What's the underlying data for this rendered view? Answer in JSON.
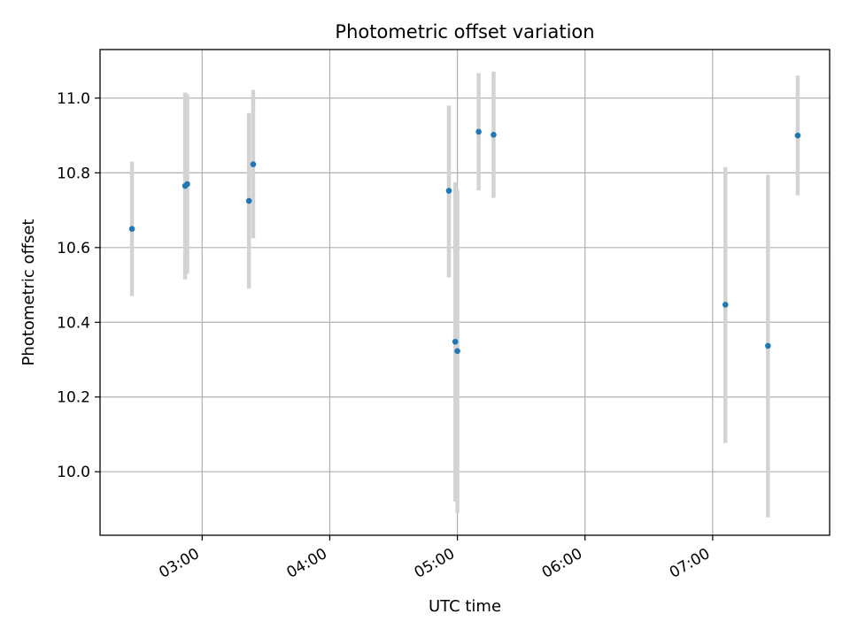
{
  "chart_data": {
    "type": "scatter",
    "title": "Photometric offset variation",
    "xlabel": "UTC time",
    "ylabel": "Photometric offset",
    "x_axis_type": "time",
    "date": "",
    "xlim": [
      "02:12",
      "07:55"
    ],
    "ylim": [
      9.83,
      11.13
    ],
    "x_ticks": [
      "03:00",
      "04:00",
      "05:00",
      "06:00",
      "07:00"
    ],
    "y_ticks": [
      10.0,
      10.2,
      10.4,
      10.6,
      10.8,
      11.0
    ],
    "y_tick_labels": [
      "10.0",
      "10.2",
      "10.4",
      "10.6",
      "10.8",
      "11.0"
    ],
    "grid": true,
    "legend": "none",
    "colors": {
      "marker": "#1f77b4",
      "errorbar": "#d3d3d3",
      "grid": "#b0b0b0",
      "axis": "#000000"
    },
    "series": [
      {
        "points": [
          {
            "x": "02:27",
            "y": 10.65,
            "ylo": 10.47,
            "yhi": 10.83
          },
          {
            "x": "02:52",
            "y": 10.765,
            "ylo": 10.515,
            "yhi": 11.015
          },
          {
            "x": "02:53",
            "y": 10.77,
            "ylo": 10.53,
            "yhi": 11.01
          },
          {
            "x": "03:22",
            "y": 10.725,
            "ylo": 10.49,
            "yhi": 10.96
          },
          {
            "x": "03:24",
            "y": 10.823,
            "ylo": 10.625,
            "yhi": 11.022
          },
          {
            "x": "04:56",
            "y": 10.752,
            "ylo": 10.52,
            "yhi": 10.98
          },
          {
            "x": "04:59",
            "y": 10.348,
            "ylo": 9.92,
            "yhi": 10.775
          },
          {
            "x": "05:00",
            "y": 10.323,
            "ylo": 9.89,
            "yhi": 10.755
          },
          {
            "x": "05:10",
            "y": 10.91,
            "ylo": 10.753,
            "yhi": 11.067
          },
          {
            "x": "05:17",
            "y": 10.902,
            "ylo": 10.733,
            "yhi": 11.071
          },
          {
            "x": "07:06",
            "y": 10.447,
            "ylo": 10.077,
            "yhi": 10.815
          },
          {
            "x": "07:26",
            "y": 10.337,
            "ylo": 9.878,
            "yhi": 10.795
          },
          {
            "x": "07:40",
            "y": 10.9,
            "ylo": 10.74,
            "yhi": 11.06
          }
        ]
      }
    ]
  }
}
